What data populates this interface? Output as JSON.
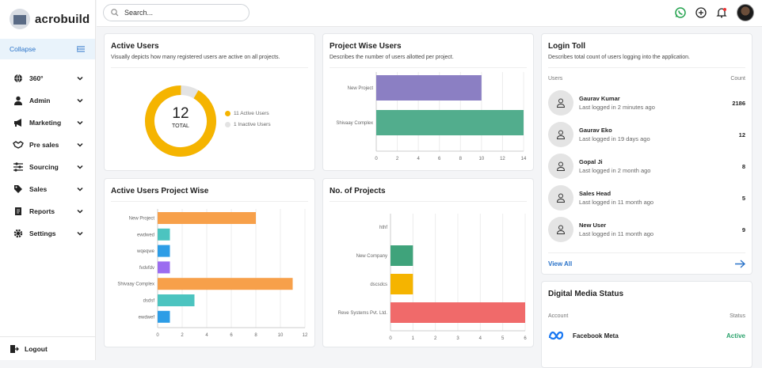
{
  "brand": {
    "name": "acrobuild"
  },
  "sidebar": {
    "collapse_label": "Collapse",
    "items": [
      {
        "label": "360°",
        "icon": "globe-icon"
      },
      {
        "label": "Admin",
        "icon": "user-icon"
      },
      {
        "label": "Marketing",
        "icon": "megaphone-icon"
      },
      {
        "label": "Pre sales",
        "icon": "handshake-icon"
      },
      {
        "label": "Sourcing",
        "icon": "sliders-icon"
      },
      {
        "label": "Sales",
        "icon": "tag-icon"
      },
      {
        "label": "Reports",
        "icon": "report-icon"
      },
      {
        "label": "Settings",
        "icon": "gear-icon"
      }
    ],
    "logout_label": "Logout"
  },
  "search": {
    "placeholder": "Search..."
  },
  "active_users": {
    "title": "Active Users",
    "subtitle": "Visually depicts how many registered users are active on all projects.",
    "total": "12",
    "total_label": "TOTAL",
    "legend_active": "11 Active Users",
    "legend_inactive": "1 Inactive Users",
    "active_color": "#f5b400",
    "inactive_color": "#e3e3e3"
  },
  "login_toll": {
    "title": "Login Toll",
    "subtitle": "Describes total count of users logging into the application.",
    "col_users": "Users",
    "col_count": "Count",
    "users": [
      {
        "name": "Gaurav Kumar",
        "meta": "Last logged in 2 minutes ago",
        "count": "2186"
      },
      {
        "name": "Gaurav Eko",
        "meta": "Last logged in 19 days ago",
        "count": "12"
      },
      {
        "name": "Gopal Ji",
        "meta": "Last logged in 2 month ago",
        "count": "8"
      },
      {
        "name": "Sales Head",
        "meta": "Last logged in 11 month ago",
        "count": "5"
      },
      {
        "name": "New User",
        "meta": "Last logged in 11 month ago",
        "count": "9"
      }
    ],
    "view_all": "View All"
  },
  "digital_media": {
    "title": "Digital Media Status",
    "col_account": "Account",
    "col_status": "Status",
    "rows": [
      {
        "name": "Facebook Meta",
        "status": "Active"
      }
    ]
  },
  "chart_data": [
    {
      "id": "project_wise_users",
      "type": "bar",
      "orientation": "horizontal",
      "title": "Project Wise Users",
      "subtitle": "Describes the number of users allotted per project.",
      "categories": [
        "New Project",
        "Shivaay Complex"
      ],
      "values": [
        10,
        14
      ],
      "colors": [
        "#8b7fc3",
        "#52ad8d"
      ],
      "xlim": [
        0,
        14
      ],
      "ticks": [
        0,
        2,
        4,
        6,
        8,
        10,
        12,
        14
      ]
    },
    {
      "id": "active_users_project_wise",
      "type": "bar",
      "orientation": "horizontal",
      "title": "Active Users Project Wise",
      "categories": [
        "New Project",
        "ewdwed",
        "wqeqwe",
        "fvdvfdv",
        "Shivaay Complex",
        "dsdsf",
        "ewdwef"
      ],
      "values": [
        8,
        1,
        1,
        1,
        11,
        3,
        1
      ],
      "colors": [
        "#f7a04a",
        "#4cc4c0",
        "#2d9de6",
        "#9b6cf0",
        "#f7a04a",
        "#4cc4c0",
        "#2d9de6"
      ],
      "xlim": [
        0,
        12
      ],
      "ticks": [
        0,
        2,
        4,
        6,
        8,
        10,
        12
      ]
    },
    {
      "id": "no_of_projects",
      "type": "bar",
      "orientation": "horizontal",
      "title": "No. of Projects",
      "categories": [
        "hthf",
        "New Company",
        "dscsdcs",
        "Reve Systems Pvt. Ltd."
      ],
      "values": [
        0,
        1,
        1,
        6
      ],
      "colors": [
        "#5ab894",
        "#3fa37b",
        "#f5b400",
        "#f06a6a"
      ],
      "xlim": [
        0,
        6
      ],
      "ticks": [
        0,
        1,
        2,
        3,
        4,
        5,
        6
      ]
    }
  ]
}
